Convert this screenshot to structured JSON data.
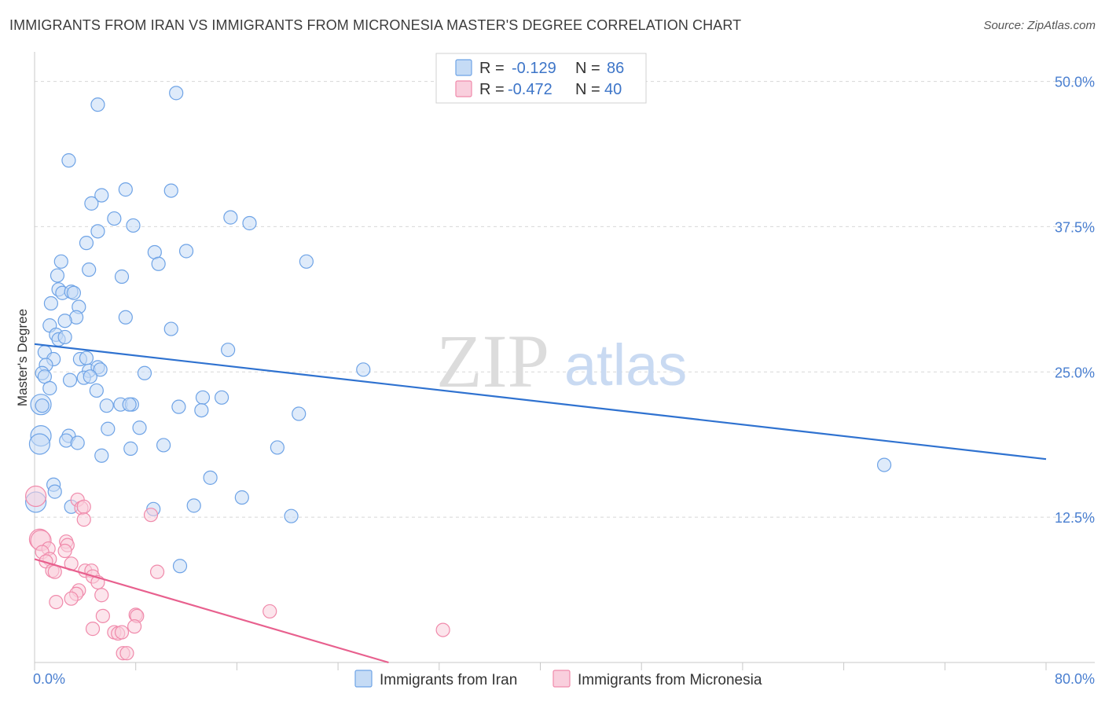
{
  "title": "IMMIGRANTS FROM IRAN VS IMMIGRANTS FROM MICRONESIA MASTER'S DEGREE CORRELATION CHART",
  "source": "Source: ZipAtlas.com",
  "watermark": {
    "zip": "ZIP",
    "atlas": "atlas"
  },
  "colors": {
    "iran": "#6ea3e6",
    "iran_fill": "#c5dbf5",
    "iran_line": "#2f72d0",
    "micronesia": "#f08aab",
    "micronesia_fill": "#f9cfdd",
    "micronesia_line": "#e8608e",
    "grid": "#d8d8d8",
    "tick": "#4a7fd0"
  },
  "legend": {
    "r_label": "R =",
    "n_label": "N =",
    "iran": {
      "r": "-0.129",
      "n": "86"
    },
    "micronesia": {
      "r": "-0.472",
      "n": "40"
    }
  },
  "chart_data": {
    "type": "scatter",
    "xlabel": "",
    "ylabel": "Master's Degree",
    "xlim": [
      0,
      80
    ],
    "ylim": [
      0,
      52
    ],
    "x_tick_labels": {
      "left": "0.0%",
      "right": "80.0%"
    },
    "y_ticks": [
      {
        "value": 12.5,
        "label": "12.5%"
      },
      {
        "value": 25.0,
        "label": "25.0%"
      },
      {
        "value": 37.5,
        "label": "37.5%"
      },
      {
        "value": 50.0,
        "label": "50.0%"
      }
    ],
    "series": [
      {
        "name": "Immigrants from Iran",
        "trend": {
          "x": [
            0,
            80
          ],
          "y": [
            27.4,
            17.5
          ]
        },
        "points": [
          [
            5.0,
            48.0
          ],
          [
            11.2,
            49.0
          ],
          [
            2.7,
            43.2
          ],
          [
            5.3,
            40.2
          ],
          [
            4.5,
            39.5
          ],
          [
            7.2,
            40.7
          ],
          [
            10.8,
            40.6
          ],
          [
            6.3,
            38.2
          ],
          [
            7.8,
            37.6
          ],
          [
            15.5,
            38.3
          ],
          [
            17.0,
            37.8
          ],
          [
            5.0,
            37.1
          ],
          [
            4.1,
            36.1
          ],
          [
            9.5,
            35.3
          ],
          [
            12.0,
            35.4
          ],
          [
            9.8,
            34.3
          ],
          [
            21.5,
            34.5
          ],
          [
            2.1,
            34.5
          ],
          [
            1.8,
            33.3
          ],
          [
            4.3,
            33.8
          ],
          [
            6.9,
            33.2
          ],
          [
            1.9,
            32.1
          ],
          [
            2.2,
            31.8
          ],
          [
            2.9,
            31.9
          ],
          [
            3.1,
            31.8
          ],
          [
            1.3,
            30.9
          ],
          [
            3.5,
            30.6
          ],
          [
            3.3,
            29.7
          ],
          [
            7.2,
            29.7
          ],
          [
            2.4,
            29.4
          ],
          [
            1.2,
            29.0
          ],
          [
            10.8,
            28.7
          ],
          [
            1.7,
            28.2
          ],
          [
            1.9,
            27.8
          ],
          [
            2.4,
            28.0
          ],
          [
            15.3,
            26.9
          ],
          [
            0.8,
            26.7
          ],
          [
            1.5,
            26.1
          ],
          [
            3.6,
            26.1
          ],
          [
            4.1,
            26.2
          ],
          [
            0.9,
            25.6
          ],
          [
            4.3,
            25.1
          ],
          [
            5.0,
            25.4
          ],
          [
            5.2,
            25.2
          ],
          [
            8.7,
            24.9
          ],
          [
            26.0,
            25.2
          ],
          [
            0.6,
            24.9
          ],
          [
            0.8,
            24.6
          ],
          [
            2.8,
            24.3
          ],
          [
            3.9,
            24.5
          ],
          [
            4.4,
            24.6
          ],
          [
            1.2,
            23.6
          ],
          [
            4.9,
            23.4
          ],
          [
            0.5,
            22.2
          ],
          [
            0.6,
            22.1
          ],
          [
            5.7,
            22.1
          ],
          [
            6.8,
            22.2
          ],
          [
            7.7,
            22.2
          ],
          [
            11.4,
            22.0
          ],
          [
            13.3,
            22.8
          ],
          [
            14.8,
            22.8
          ],
          [
            13.2,
            21.7
          ],
          [
            20.9,
            21.4
          ],
          [
            5.8,
            20.1
          ],
          [
            8.3,
            20.2
          ],
          [
            0.5,
            19.5
          ],
          [
            0.4,
            18.8
          ],
          [
            2.7,
            19.5
          ],
          [
            2.5,
            19.1
          ],
          [
            3.4,
            18.9
          ],
          [
            10.2,
            18.7
          ],
          [
            19.2,
            18.5
          ],
          [
            7.6,
            18.4
          ],
          [
            5.3,
            17.8
          ],
          [
            67.2,
            17.0
          ],
          [
            1.5,
            15.3
          ],
          [
            13.9,
            15.9
          ],
          [
            1.6,
            14.7
          ],
          [
            16.4,
            14.2
          ],
          [
            0.1,
            13.8
          ],
          [
            2.9,
            13.4
          ],
          [
            9.4,
            13.2
          ],
          [
            12.6,
            13.5
          ],
          [
            20.3,
            12.6
          ],
          [
            11.5,
            8.3
          ],
          [
            7.5,
            22.2
          ]
        ]
      },
      {
        "name": "Immigrants from Micronesia",
        "trend": {
          "x": [
            0,
            28
          ],
          "y": [
            8.9,
            0
          ]
        },
        "points": [
          [
            0.1,
            14.3
          ],
          [
            3.4,
            14.0
          ],
          [
            3.7,
            13.3
          ],
          [
            3.9,
            13.4
          ],
          [
            9.2,
            12.7
          ],
          [
            3.9,
            12.3
          ],
          [
            0.4,
            10.6
          ],
          [
            0.5,
            10.5
          ],
          [
            2.5,
            10.4
          ],
          [
            2.6,
            10.1
          ],
          [
            1.1,
            9.8
          ],
          [
            0.6,
            9.5
          ],
          [
            2.4,
            9.6
          ],
          [
            1.2,
            8.9
          ],
          [
            0.9,
            8.7
          ],
          [
            2.9,
            8.5
          ],
          [
            4.0,
            7.9
          ],
          [
            4.5,
            7.9
          ],
          [
            1.4,
            7.9
          ],
          [
            1.6,
            7.8
          ],
          [
            9.7,
            7.8
          ],
          [
            4.6,
            7.4
          ],
          [
            5.0,
            6.9
          ],
          [
            3.5,
            6.2
          ],
          [
            3.3,
            5.9
          ],
          [
            2.9,
            5.5
          ],
          [
            5.3,
            5.8
          ],
          [
            1.7,
            5.2
          ],
          [
            5.4,
            4.0
          ],
          [
            8.0,
            4.1
          ],
          [
            8.1,
            4.0
          ],
          [
            18.6,
            4.4
          ],
          [
            4.6,
            2.9
          ],
          [
            7.9,
            3.1
          ],
          [
            6.3,
            2.6
          ],
          [
            6.6,
            2.5
          ],
          [
            6.9,
            2.6
          ],
          [
            32.3,
            2.8
          ],
          [
            7.0,
            0.8
          ],
          [
            7.3,
            0.8
          ]
        ]
      }
    ],
    "legend_position": "bottom-center"
  }
}
